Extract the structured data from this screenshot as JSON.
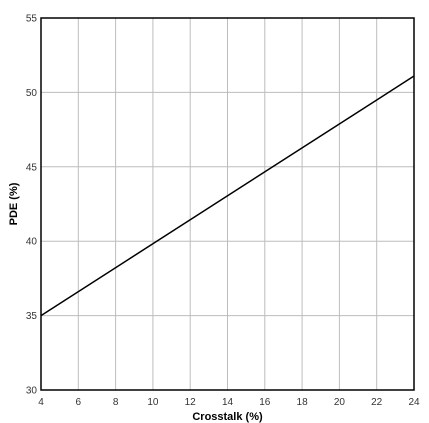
{
  "chart_data": {
    "type": "line",
    "title": "",
    "xlabel": "Crosstalk (%)",
    "ylabel": "PDE (%)",
    "xlim": [
      4,
      24
    ],
    "ylim": [
      30,
      55
    ],
    "xticks": [
      4,
      6,
      8,
      10,
      12,
      14,
      16,
      18,
      20,
      22,
      24
    ],
    "yticks": [
      30,
      35,
      40,
      45,
      50,
      55
    ],
    "grid": true,
    "series": [
      {
        "x": [
          4,
          24
        ],
        "y": [
          35,
          51.1
        ],
        "color": "#000000"
      }
    ]
  }
}
